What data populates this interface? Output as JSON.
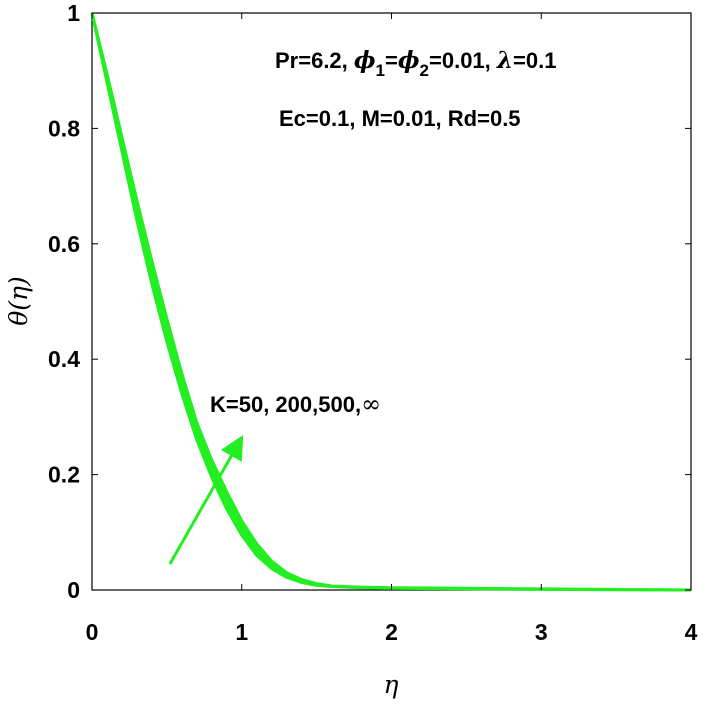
{
  "chart_data": {
    "type": "line",
    "title": "",
    "xlabel": "η",
    "ylabel": "θ(η)",
    "xlim": [
      0,
      4
    ],
    "ylim": [
      0,
      1
    ],
    "x_ticks": [
      "0",
      "1",
      "2",
      "3",
      "4"
    ],
    "y_ticks": [
      "0",
      "0.2",
      "0.4",
      "0.6",
      "0.8",
      "1"
    ],
    "grid": false,
    "line_color": "#22ee22",
    "series": [
      {
        "x": [
          0,
          0.1,
          0.2,
          0.3,
          0.4,
          0.5,
          0.6,
          0.7,
          0.8,
          0.9,
          1.0,
          1.1,
          1.2,
          1.3,
          1.4,
          1.5,
          1.6,
          1.8,
          2.0,
          2.5,
          3.0,
          3.5,
          4.0
        ],
        "y": [
          1.0,
          0.88,
          0.76,
          0.64,
          0.53,
          0.43,
          0.34,
          0.26,
          0.195,
          0.14,
          0.095,
          0.06,
          0.037,
          0.022,
          0.013,
          0.008,
          0.006,
          0.004,
          0.003,
          0.002,
          0.001,
          0.0005,
          0.0
        ]
      },
      {
        "x": [
          0,
          0.1,
          0.2,
          0.3,
          0.4,
          0.5,
          0.6,
          0.7,
          0.8,
          0.9,
          1.0,
          1.1,
          1.2,
          1.3,
          1.4,
          1.5,
          1.6,
          1.8,
          2.0,
          2.5,
          3.0,
          3.5,
          4.0
        ],
        "y": [
          1.0,
          0.895,
          0.785,
          0.675,
          0.57,
          0.47,
          0.375,
          0.29,
          0.225,
          0.17,
          0.12,
          0.08,
          0.05,
          0.03,
          0.018,
          0.011,
          0.007,
          0.005,
          0.004,
          0.003,
          0.002,
          0.001,
          0.0
        ]
      }
    ],
    "annotations": {
      "params_line1": [
        "Pr=6.2, ",
        "ϕ",
        "1",
        "=",
        "ϕ",
        "2",
        "=0.01, ",
        "λ",
        "=0.1"
      ],
      "params_line2": "Ec=0.1,  M=0.01, Rd=0.5",
      "arrow_label": "K=50, 200,500,",
      "arrow_label_symbol": "∞",
      "arrow": {
        "from": [
          0.52,
          0.045
        ],
        "to": [
          0.98,
          0.255
        ]
      }
    }
  }
}
